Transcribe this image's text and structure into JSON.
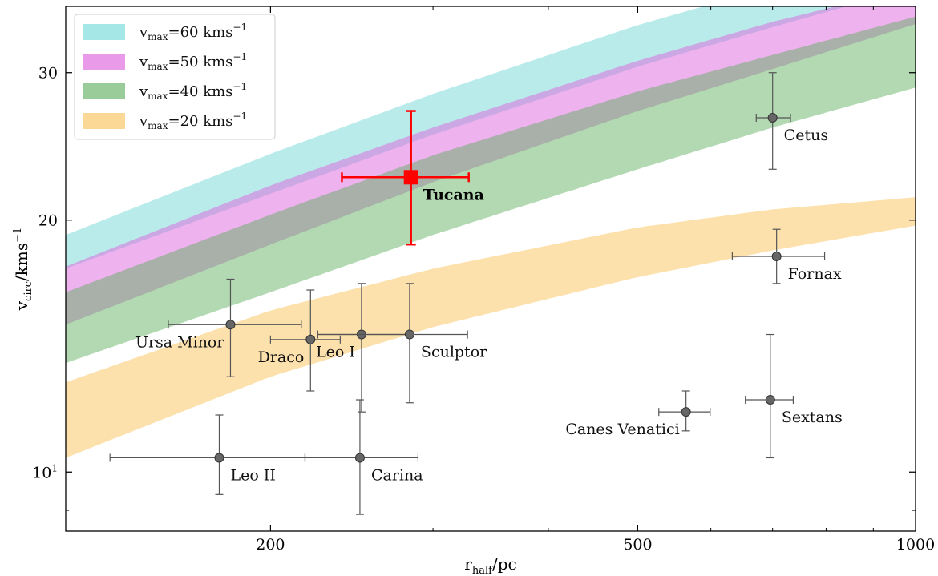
{
  "chart_data": {
    "type": "scatter",
    "xscale": "log",
    "yscale": "log",
    "xlim": [
      120,
      1000
    ],
    "ylim": [
      8.5,
      36
    ],
    "x_ticks": [
      200,
      500,
      1000
    ],
    "y_ticks": [
      10,
      20,
      30
    ],
    "xlabel": {
      "main": "r",
      "sub": "half",
      "rest": "/pc"
    },
    "ylabel": {
      "main": "v",
      "sub": "circ",
      "rest": "/kms",
      "sup": "−1"
    },
    "grid": false,
    "legend_position": "top-left",
    "bands": [
      {
        "name_main": "v",
        "name_sub": "max",
        "name_rest": "=60 kms",
        "name_sup": "−1",
        "color": "#7fdbdb",
        "opacity": 0.55,
        "x": [
          120,
          200,
          300,
          500,
          700,
          1000
        ],
        "lower": [
          17.5,
          21.5,
          25.3,
          30.5,
          34.0,
          38.0
        ],
        "upper": [
          19.2,
          24.0,
          28.3,
          34.2,
          38.0,
          42.0
        ]
      },
      {
        "name_main": "v",
        "name_sub": "max",
        "name_rest": "=50 kms",
        "name_sup": "−1",
        "color": "#dd66dd",
        "opacity": 0.5,
        "x": [
          120,
          200,
          300,
          500,
          700,
          1000
        ],
        "lower": [
          15.0,
          18.7,
          22.2,
          27.0,
          30.3,
          34.3
        ],
        "upper": [
          17.6,
          22.0,
          25.8,
          31.0,
          34.5,
          38.0
        ]
      },
      {
        "name_main": "v",
        "name_sub": "max",
        "name_rest": "=40 kms",
        "name_sup": "−1",
        "color": "#55aa55",
        "opacity": 0.45,
        "x": [
          120,
          200,
          300,
          500,
          700,
          1000
        ],
        "lower": [
          13.5,
          16.4,
          19.2,
          23.0,
          25.8,
          28.8
        ],
        "upper": [
          16.4,
          20.3,
          23.9,
          28.5,
          31.5,
          35.0
        ]
      },
      {
        "name_main": "v",
        "name_sub": "max",
        "name_rest": "=20 kms",
        "name_sup": "−1",
        "color": "#fbc869",
        "opacity": 0.55,
        "x": [
          120,
          200,
          300,
          500,
          700,
          1000
        ],
        "lower": [
          10.4,
          13.0,
          14.9,
          17.1,
          18.4,
          19.7
        ],
        "upper": [
          12.8,
          15.6,
          17.5,
          19.6,
          20.6,
          21.3
        ]
      }
    ],
    "galaxies": [
      {
        "name": "Ursa Minor",
        "x": 181,
        "y": 15.0,
        "xerr": [
          155,
          216
        ],
        "yerr": [
          13.0,
          17.0
        ],
        "label_side": "left"
      },
      {
        "name": "Draco",
        "x": 221,
        "y": 14.4,
        "xerr": [
          200,
          238
        ],
        "yerr": [
          12.5,
          16.5
        ],
        "label_side": "left"
      },
      {
        "name": "Leo I",
        "x": 251,
        "y": 14.6,
        "xerr": [
          225,
          282
        ],
        "yerr": [
          11.8,
          16.8
        ],
        "label_side": "left"
      },
      {
        "name": "Sculptor",
        "x": 283,
        "y": 14.6,
        "xerr": [
          225,
          327
        ],
        "yerr": [
          12.1,
          16.8
        ],
        "label_side": "right"
      },
      {
        "name": "Leo II",
        "x": 176,
        "y": 10.4,
        "xerr": [
          134,
          218
        ],
        "yerr": [
          9.4,
          11.7
        ],
        "label_side": "right"
      },
      {
        "name": "Carina",
        "x": 250,
        "y": 10.4,
        "xerr": [
          218,
          289
        ],
        "yerr": [
          8.9,
          12.2
        ],
        "label_side": "right"
      },
      {
        "name": "Canes Venatici",
        "x": 564,
        "y": 11.8,
        "xerr": [
          527,
          599
        ],
        "yerr": [
          11.2,
          12.5
        ],
        "label_side": "left"
      },
      {
        "name": "Sextans",
        "x": 696,
        "y": 12.2,
        "xerr": [
          654,
          737
        ],
        "yerr": [
          10.4,
          14.6
        ],
        "label_side": "right"
      },
      {
        "name": "Fornax",
        "x": 707,
        "y": 18.1,
        "xerr": [
          633,
          797
        ],
        "yerr": [
          16.8,
          19.5
        ],
        "label_side": "right"
      },
      {
        "name": "Cetus",
        "x": 700,
        "y": 26.5,
        "xerr": [
          672,
          732
        ],
        "yerr": [
          23.0,
          30.0
        ],
        "label_side": "right"
      }
    ],
    "highlight": {
      "name": "Tucana",
      "x": 284,
      "y": 22.5,
      "xerr": [
        239,
        328
      ],
      "yerr": [
        18.7,
        27.0
      ],
      "color": "#ff0000"
    }
  }
}
